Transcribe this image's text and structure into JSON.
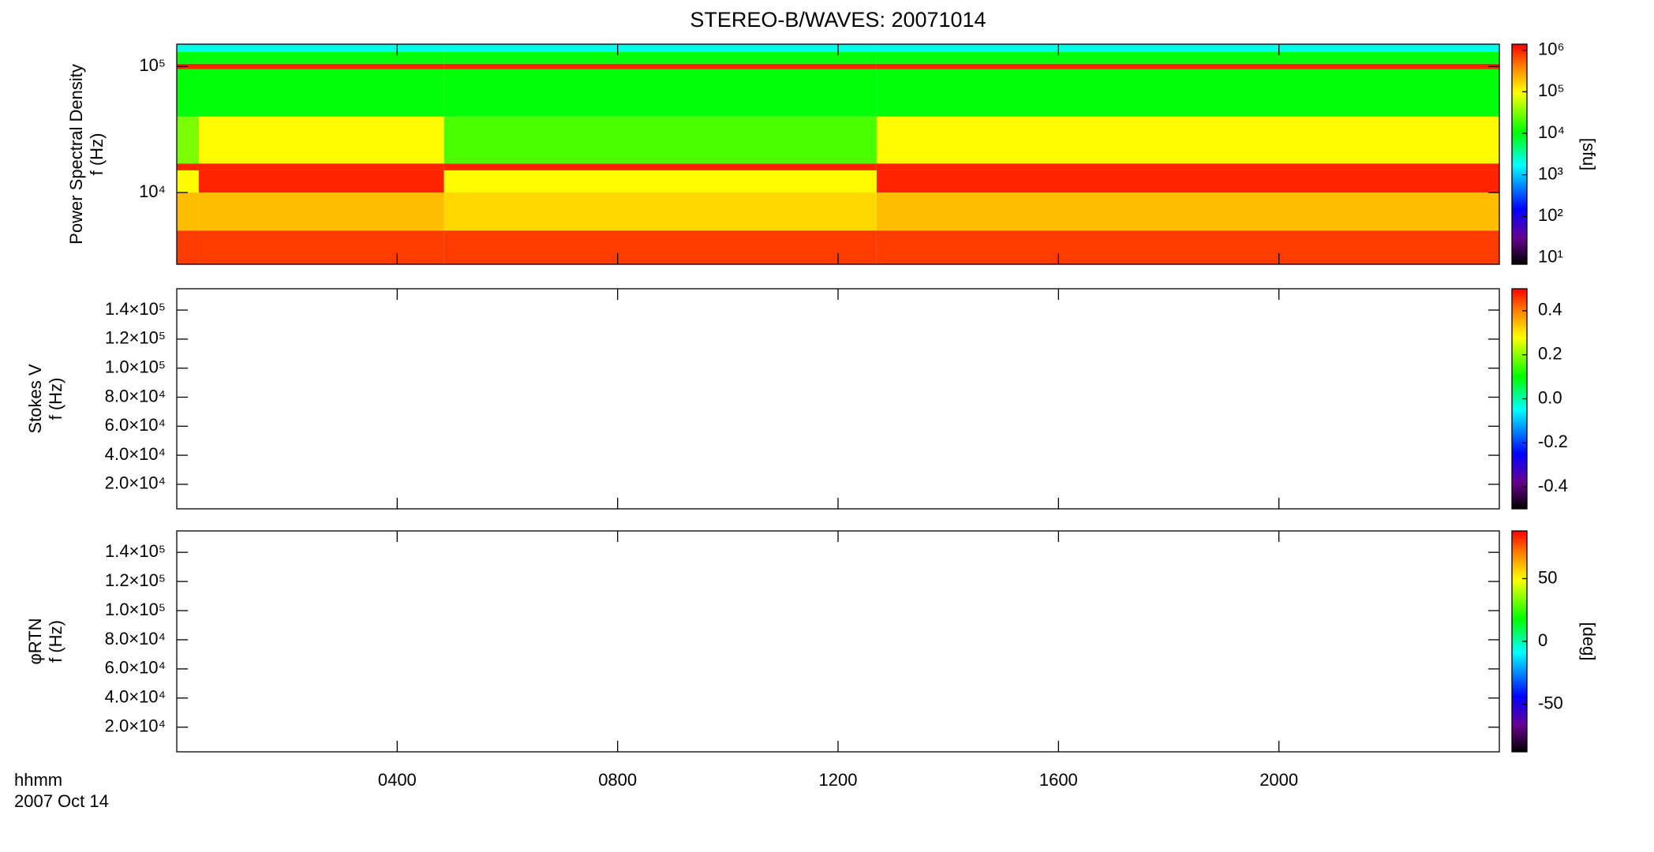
{
  "chart_data": [
    {
      "type": "heatmap",
      "title": "STEREO-B/WAVES: 20071014",
      "y_label": [
        "Power Spectral Density",
        "f (Hz)"
      ],
      "log_y": true,
      "ylim": [
        2700,
        150000
      ],
      "yticks": [
        {
          "value": 10000,
          "label": "10⁴"
        },
        {
          "value": 100000,
          "label": "10⁵"
        }
      ],
      "xlim": [
        0,
        24
      ],
      "xticks": [
        4,
        8,
        12,
        16,
        20
      ],
      "x_edges": [
        0,
        0.4,
        4.85,
        12.7,
        24
      ],
      "y_edges": [
        2700,
        5000,
        10000,
        15000,
        17000,
        40000,
        95000,
        105000,
        130000,
        150000
      ],
      "z": [
        [
          800000,
          800000,
          800000,
          800000
        ],
        [
          200000,
          200000,
          150000,
          200000
        ],
        [
          100000,
          1000000,
          100000,
          1000000
        ],
        [
          1000000,
          1000000,
          1000000,
          1000000
        ],
        [
          30000,
          100000,
          20000,
          100000
        ],
        [
          10000,
          10000,
          10000,
          10000
        ],
        [
          1000000,
          1000000,
          1000000,
          1000000
        ],
        [
          10000,
          10000,
          10000,
          10000
        ],
        [
          2000,
          2000,
          2000,
          2000
        ]
      ],
      "colormap": "rainbow",
      "colorbar": {
        "log": true,
        "lim": [
          7,
          1400000
        ],
        "label": "[sfu]",
        "ticks": [
          {
            "value": 10,
            "label": "10¹"
          },
          {
            "value": 100,
            "label": "10²"
          },
          {
            "value": 1000,
            "label": "10³"
          },
          {
            "value": 10000,
            "label": "10⁴"
          },
          {
            "value": 100000,
            "label": "10⁵"
          },
          {
            "value": 1000000,
            "label": "10⁶"
          }
        ]
      }
    },
    {
      "type": "heatmap",
      "y_label": [
        "Stokes V",
        "f (Hz)"
      ],
      "log_y": false,
      "ylim": [
        3100,
        154700
      ],
      "yticks": [
        {
          "value": 20000,
          "label": "2.0×10⁴"
        },
        {
          "value": 40000,
          "label": "4.0×10⁴"
        },
        {
          "value": 60000,
          "label": "6.0×10⁴"
        },
        {
          "value": 80000,
          "label": "8.0×10⁴"
        },
        {
          "value": 100000,
          "label": "1.0×10⁵"
        },
        {
          "value": 120000,
          "label": "1.2×10⁵"
        },
        {
          "value": 140000,
          "label": "1.4×10⁵"
        }
      ],
      "xlim": [
        0,
        24
      ],
      "xticks": [
        4,
        8,
        12,
        16,
        20
      ],
      "colormap": "rainbow",
      "colorbar": {
        "log": false,
        "lim": [
          -0.5,
          0.5
        ],
        "ticks": [
          {
            "value": -0.4,
            "label": "-0.4"
          },
          {
            "value": -0.2,
            "label": "-0.2"
          },
          {
            "value": 0,
            "label": "0.0"
          },
          {
            "value": 0.2,
            "label": "0.2"
          },
          {
            "value": 0.4,
            "label": "0.4"
          }
        ]
      }
    },
    {
      "type": "heatmap",
      "y_label": [
        "φRTN",
        "f (Hz)"
      ],
      "log_y": false,
      "ylim": [
        3100,
        154700
      ],
      "yticks": [
        {
          "value": 20000,
          "label": "2.0×10⁴"
        },
        {
          "value": 40000,
          "label": "4.0×10⁴"
        },
        {
          "value": 60000,
          "label": "6.0×10⁴"
        },
        {
          "value": 80000,
          "label": "8.0×10⁴"
        },
        {
          "value": 100000,
          "label": "1.0×10⁵"
        },
        {
          "value": 120000,
          "label": "1.2×10⁵"
        },
        {
          "value": 140000,
          "label": "1.4×10⁵"
        }
      ],
      "xlim": [
        0,
        24
      ],
      "xticks": [
        {
          "value": 4,
          "label": "0400"
        },
        {
          "value": 8,
          "label": "0800"
        },
        {
          "value": 12,
          "label": "1200"
        },
        {
          "value": 16,
          "label": "1600"
        },
        {
          "value": 20,
          "label": "2000"
        }
      ],
      "x_label": "hhmm",
      "date_label": "2007 Oct 14",
      "colormap": "rainbow",
      "colorbar": {
        "log": false,
        "lim": [
          -88,
          88
        ],
        "label": "[deg]",
        "ticks": [
          -50,
          0,
          50
        ]
      }
    }
  ]
}
